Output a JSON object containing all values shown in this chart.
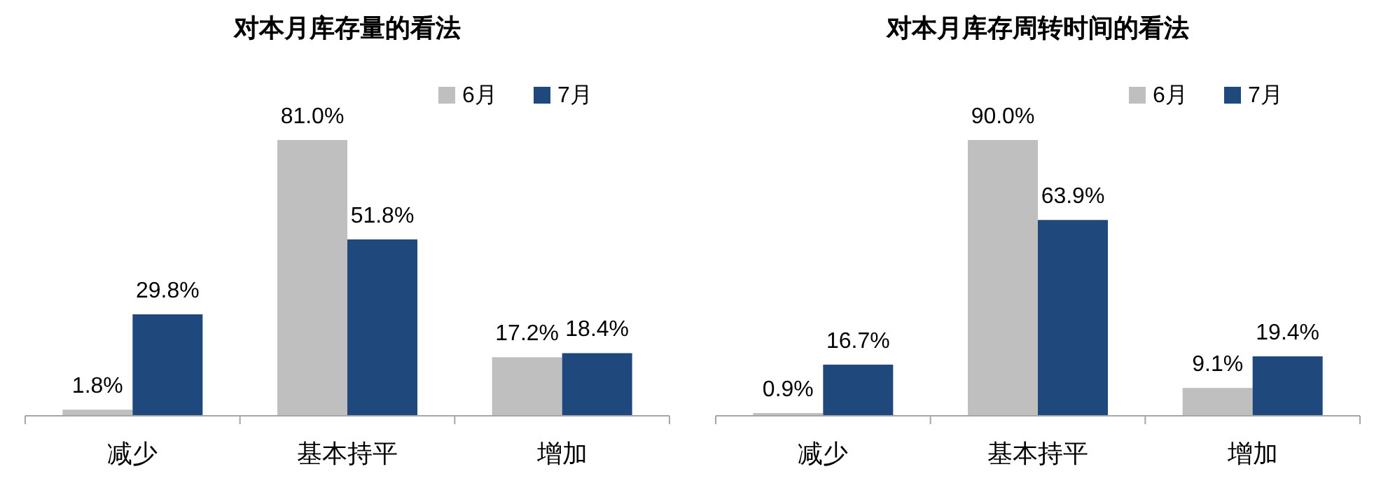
{
  "chart_data": [
    {
      "type": "bar",
      "title": "对本月库存量的看法",
      "categories": [
        "减少",
        "基本持平",
        "增加"
      ],
      "legend": "top right",
      "series": [
        {
          "name": "6月",
          "color": "#bfbfbf",
          "values": [
            1.8,
            81.0,
            17.2
          ],
          "value_labels": [
            "1.8%",
            "81.0%",
            "17.2%"
          ]
        },
        {
          "name": "7月",
          "color": "#1f497d",
          "values": [
            29.8,
            51.8,
            18.4
          ],
          "value_labels": [
            "29.8%",
            "51.8%",
            "18.4%"
          ]
        }
      ]
    },
    {
      "type": "bar",
      "title": "对本月库存周转时间的看法",
      "categories": [
        "减少",
        "基本持平",
        "增加"
      ],
      "legend": "top right",
      "series": [
        {
          "name": "6月",
          "color": "#bfbfbf",
          "values": [
            0.9,
            90.0,
            9.1
          ],
          "value_labels": [
            "0.9%",
            "90.0%",
            "9.1%"
          ]
        },
        {
          "name": "7月",
          "color": "#1f497d",
          "values": [
            16.7,
            63.9,
            19.4
          ],
          "value_labels": [
            "16.7%",
            "63.9%",
            "19.4%"
          ]
        }
      ]
    }
  ]
}
